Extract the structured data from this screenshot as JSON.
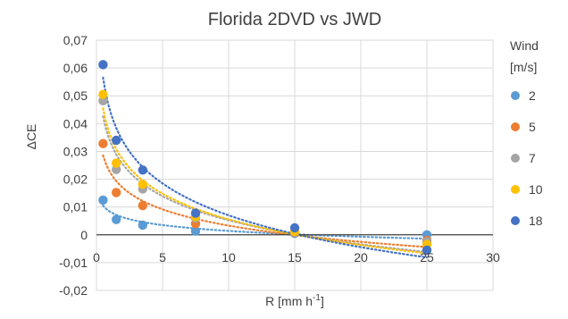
{
  "chart_data": {
    "type": "scatter",
    "title": "Florida 2DVD vs JWD",
    "xlabel": "R [mm h",
    "xlabel_sup": "-1",
    "xlabel_end": "]",
    "ylabel": "ΔCE",
    "xlim": [
      0,
      30
    ],
    "ylim": [
      -0.02,
      0.07
    ],
    "x_ticks": [
      0,
      5,
      10,
      15,
      20,
      25,
      30
    ],
    "x_tick_labels": [
      "0",
      "5",
      "10",
      "15",
      "20",
      "25",
      "30"
    ],
    "y_ticks": [
      -0.02,
      -0.01,
      0,
      0.01,
      0.02,
      0.03,
      0.04,
      0.05,
      0.06,
      0.07
    ],
    "y_tick_labels": [
      "-0,02",
      "-0,01",
      "0",
      "0,01",
      "0,02",
      "0,03",
      "0,04",
      "0,05",
      "0,06",
      "0,07"
    ],
    "grid": true,
    "legend_position": "right",
    "legend_title_line1": "Wind",
    "legend_title_line2": "[m/s]",
    "trendline": "dotted logarithmic",
    "series": [
      {
        "name": "2",
        "color": "#5B9BD5",
        "x": [
          0.5,
          1.5,
          3.5,
          7.5,
          15,
          25
        ],
        "y": [
          0.0125,
          0.0055,
          0.0035,
          0.0013,
          0.0005,
          0.0
        ]
      },
      {
        "name": "5",
        "color": "#ED7D31",
        "x": [
          0.5,
          1.5,
          3.5,
          7.5,
          15,
          25
        ],
        "y": [
          0.0328,
          0.0152,
          0.0105,
          0.004,
          0.0008,
          -0.002
        ]
      },
      {
        "name": "7",
        "color": "#A5A5A5",
        "x": [
          0.5,
          1.5,
          3.5,
          7.5,
          15,
          25
        ],
        "y": [
          0.0482,
          0.0235,
          0.0165,
          0.006,
          0.001,
          -0.0025
        ]
      },
      {
        "name": "10",
        "color": "#FFC000",
        "x": [
          0.5,
          1.5,
          3.5,
          7.5,
          15,
          25
        ],
        "y": [
          0.0505,
          0.0258,
          0.0182,
          0.0065,
          0.0012,
          -0.0035
        ]
      },
      {
        "name": "18",
        "color": "#4472C4",
        "x": [
          0.5,
          1.5,
          3.5,
          7.5,
          15,
          25
        ],
        "y": [
          0.0612,
          0.034,
          0.0233,
          0.0078,
          0.0025,
          -0.0055
        ]
      }
    ]
  }
}
